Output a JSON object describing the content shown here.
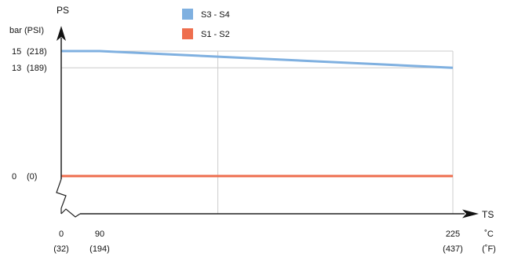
{
  "chart_data": {
    "type": "line",
    "y_axis": {
      "label": "PS",
      "unit_label": "bar (PSI)",
      "ticks": [
        {
          "bar": "15",
          "psi": "(218)",
          "value": 15
        },
        {
          "bar": "13",
          "psi": "(189)",
          "value": 13
        },
        {
          "bar": "0",
          "psi": "(0)",
          "value": 0
        }
      ]
    },
    "x_axis": {
      "label": "TS",
      "unit_c": "˚C",
      "unit_f": "(˚F)",
      "ticks": [
        {
          "c": "0",
          "f": "(32)",
          "value": 0
        },
        {
          "c": "90",
          "f": "(194)",
          "value": 90
        },
        {
          "c": "225",
          "f": "(437)",
          "value": 225
        }
      ]
    },
    "series": [
      {
        "name": "S3 - S4",
        "color": "#7fb0e0",
        "points": [
          [
            0,
            15
          ],
          [
            22,
            15
          ],
          [
            225,
            13
          ]
        ]
      },
      {
        "name": "S1 - S2",
        "color": "#ee6e4e",
        "points": [
          [
            0,
            0
          ],
          [
            225,
            0
          ]
        ]
      }
    ],
    "legend_position": "top-center",
    "grid": true
  }
}
